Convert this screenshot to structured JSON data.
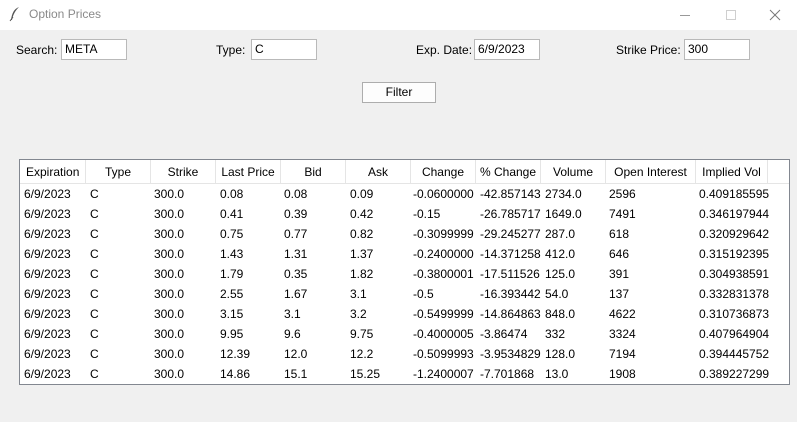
{
  "window": {
    "title": "Option Prices"
  },
  "search": {
    "label": "Search:",
    "value": "META"
  },
  "type": {
    "label": "Type:",
    "value": "C"
  },
  "exp_date": {
    "label": "Exp. Date:",
    "value": "6/9/2023"
  },
  "strike_price": {
    "label": "Strike Price:",
    "value": "300"
  },
  "filter_button": {
    "label": "Filter"
  },
  "table": {
    "columns": [
      "Expiration",
      "Type",
      "Strike",
      "Last Price",
      "Bid",
      "Ask",
      "Change",
      "% Change",
      "Volume",
      "Open Interest",
      "Implied Vol"
    ],
    "rows": [
      [
        "6/9/2023",
        "C",
        "300.0",
        "0.08",
        "0.08",
        "0.09",
        "-0.0600000",
        "-42.857143",
        "2734.0",
        "2596",
        "0.409185595"
      ],
      [
        "6/9/2023",
        "C",
        "300.0",
        "0.41",
        "0.39",
        "0.42",
        "-0.15",
        "-26.785717",
        "1649.0",
        "7491",
        "0.346197944"
      ],
      [
        "6/9/2023",
        "C",
        "300.0",
        "0.75",
        "0.77",
        "0.82",
        "-0.3099999",
        "-29.245277",
        "287.0",
        "618",
        "0.320929642"
      ],
      [
        "6/9/2023",
        "C",
        "300.0",
        "1.43",
        "1.31",
        "1.37",
        "-0.2400000",
        "-14.371258",
        "412.0",
        "646",
        "0.315192395"
      ],
      [
        "6/9/2023",
        "C",
        "300.0",
        "1.79",
        "0.35",
        "1.82",
        "-0.3800001",
        "-17.511526",
        "125.0",
        "391",
        "0.304938591"
      ],
      [
        "6/9/2023",
        "C",
        "300.0",
        "2.55",
        "1.67",
        "3.1",
        "-0.5",
        "-16.393442",
        "54.0",
        "137",
        "0.332831378"
      ],
      [
        "6/9/2023",
        "C",
        "300.0",
        "3.15",
        "3.1",
        "3.2",
        "-0.5499999",
        "-14.864863",
        "848.0",
        "4622",
        "0.310736873"
      ],
      [
        "6/9/2023",
        "C",
        "300.0",
        "9.95",
        "9.6",
        "9.75",
        "-0.4000005",
        "-3.86474",
        "332",
        "3324",
        "0.407964904"
      ],
      [
        "6/9/2023",
        "C",
        "300.0",
        "12.39",
        "12.0",
        "12.2",
        "-0.5099993",
        "-3.9534829",
        "128.0",
        "7194",
        "0.394445752"
      ],
      [
        "6/9/2023",
        "C",
        "300.0",
        "14.86",
        "15.1",
        "15.25",
        "-1.2400007",
        "-7.701868",
        "13.0",
        "1908",
        "0.389227299"
      ]
    ]
  }
}
